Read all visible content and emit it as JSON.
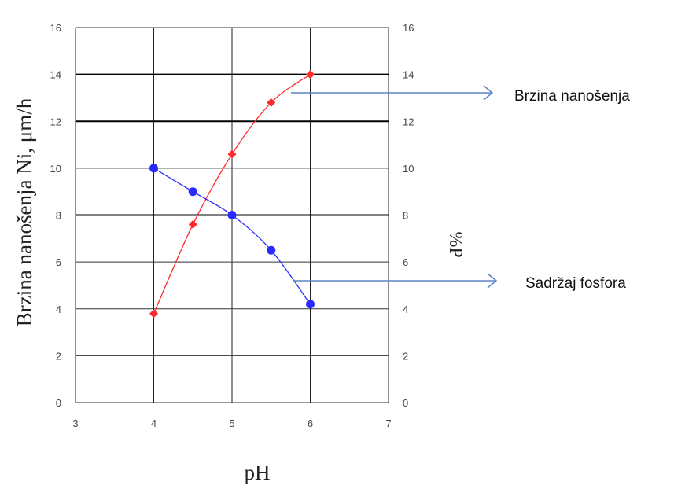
{
  "chart_data": {
    "type": "line",
    "xlabel": "pH",
    "ylabel": "Brzina nanošenja Ni, μm/h",
    "y2label": "%P",
    "xlim": [
      3,
      7
    ],
    "ylim": [
      0,
      16
    ],
    "y2lim": [
      0,
      16
    ],
    "x_ticks": [
      "3",
      "4",
      "5",
      "6",
      "7"
    ],
    "y_ticks": [
      "0",
      "2",
      "4",
      "6",
      "8",
      "10",
      "12",
      "14",
      "16"
    ],
    "y2_ticks": [
      "0",
      "2",
      "4",
      "6",
      "8",
      "10",
      "12",
      "14",
      "16"
    ],
    "grid": true,
    "heavy_gridlines": [
      8,
      12,
      14
    ],
    "series": [
      {
        "color": "#ff2a2a",
        "marker": "diamond",
        "axis": "left",
        "x": [
          4,
          4.5,
          5,
          5.5,
          6
        ],
        "y": [
          3.8,
          7.6,
          10.6,
          12.8,
          14.0
        ]
      },
      {
        "color": "#2a2aff",
        "marker": "circle",
        "axis": "right",
        "x": [
          4,
          4.5,
          5,
          5.5,
          6
        ],
        "y": [
          10.0,
          9.0,
          8.0,
          6.5,
          4.2
        ]
      }
    ],
    "annotations": [
      {
        "text": "Brzina nanošenja",
        "points_to_series": 0
      },
      {
        "text": "Sadržaj fosfora",
        "points_to_series": 1
      }
    ]
  }
}
